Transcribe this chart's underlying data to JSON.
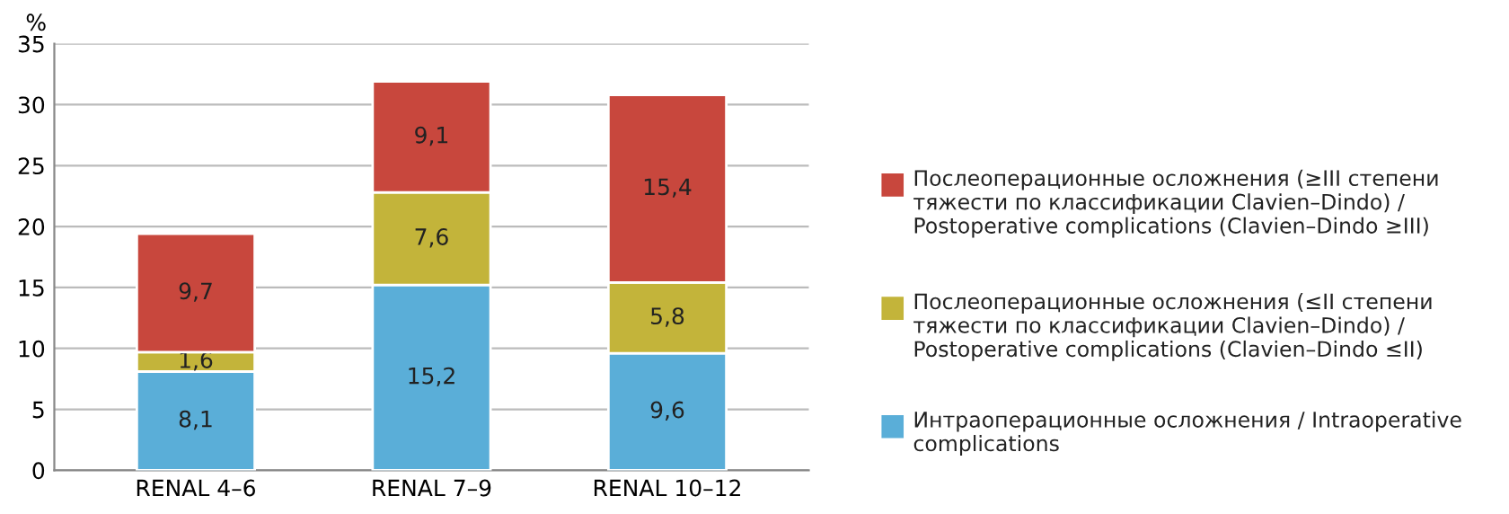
{
  "chart_data": {
    "type": "bar",
    "stacked": true,
    "ylabel": "%",
    "categories": [
      "RENAL 4–6",
      "RENAL 7–9",
      "RENAL 10–12"
    ],
    "series": [
      {
        "name": "Интраоперационные осложнения / Intraoperative complications",
        "color": "#5aaed8",
        "values": [
          8.1,
          15.2,
          9.6
        ],
        "value_labels": [
          "8,1",
          "15,2",
          "9,6"
        ]
      },
      {
        "name": "Послеоперационные осложнения (≤II степени тяжести по классификации Clavien–Dindo) / Postoperative complications (Clavien–Dindo ≤II)",
        "color": "#c3b43a",
        "values": [
          1.6,
          7.6,
          5.8
        ],
        "value_labels": [
          "1,6",
          "7,6",
          "5,8"
        ]
      },
      {
        "name": "Послеоперационные осложнения (≥III степени тяжести по классификации Clavien–Dindo) / Postoperative complications (Clavien–Dindo ≥III)",
        "color": "#c8473d",
        "values": [
          9.7,
          9.1,
          15.4
        ],
        "value_labels": [
          "9,7",
          "9,1",
          "15,4"
        ]
      }
    ],
    "ylim": [
      0,
      35
    ],
    "yticks": [
      0,
      5,
      10,
      15,
      20,
      25,
      30,
      35
    ],
    "grid": "y",
    "legend": "right"
  }
}
